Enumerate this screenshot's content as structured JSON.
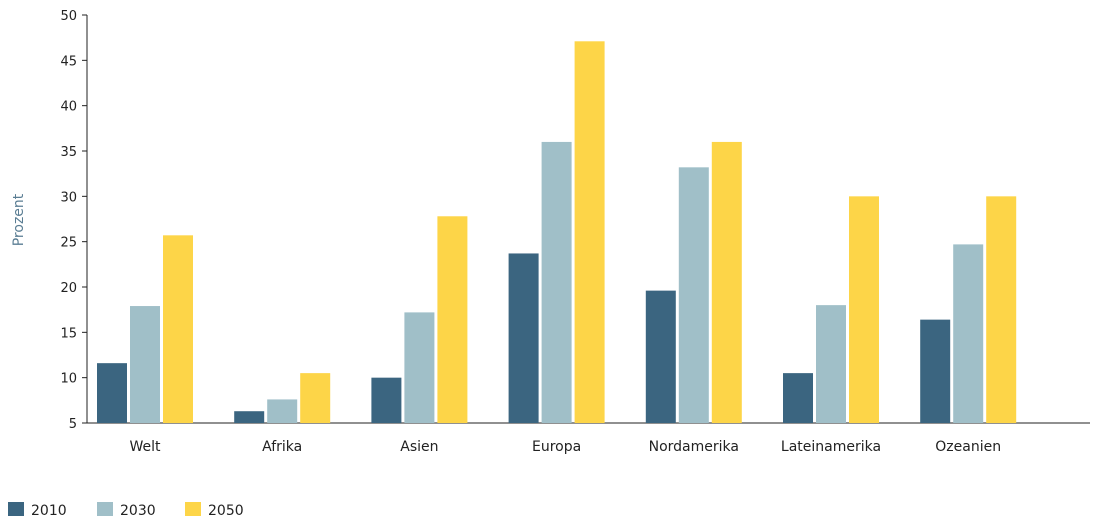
{
  "chart_data": {
    "type": "bar",
    "title": "",
    "xlabel": "",
    "ylabel": "Prozent",
    "ylim": [
      5,
      50
    ],
    "yticks": [
      5,
      10,
      15,
      20,
      25,
      30,
      35,
      40,
      45,
      50
    ],
    "categories": [
      "Welt",
      "Afrika",
      "Asien",
      "Europa",
      "Nordamerika",
      "Lateinamerika",
      "Ozeanien"
    ],
    "series": [
      {
        "name": "2010",
        "color": "#3b6580",
        "values": [
          11.6,
          6.3,
          10.0,
          23.7,
          19.6,
          10.5,
          16.4
        ]
      },
      {
        "name": "2030",
        "color": "#a0bfc8",
        "values": [
          17.9,
          7.6,
          17.2,
          36.0,
          33.2,
          18.0,
          24.7
        ]
      },
      {
        "name": "2050",
        "color": "#fdd548",
        "values": [
          25.7,
          10.5,
          27.8,
          47.1,
          36.0,
          30.0,
          30.0
        ]
      }
    ],
    "legend": "bottom-left",
    "grid": false,
    "ylabel_color": "#5a7d93",
    "axis_color": "#222222"
  }
}
